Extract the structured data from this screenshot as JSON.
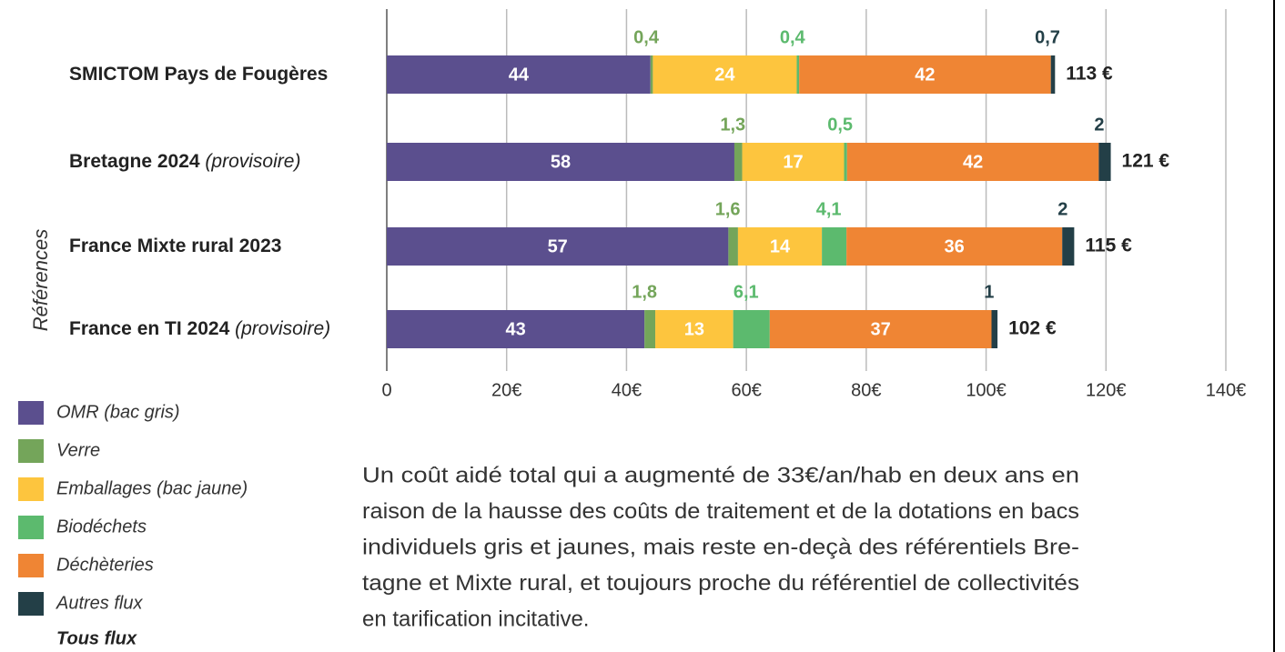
{
  "chart_data": {
    "type": "stacked_barh",
    "categories": [
      "SMICTOM Pays de Fougères",
      "Bretagne 2024",
      "France Mixte rural 2023",
      "France en TI 2024"
    ],
    "category_notes": [
      null,
      "(provisoire)",
      null,
      "(provisoire)"
    ],
    "y_label": "Références",
    "series": [
      {
        "name": "OMR (bac gris)",
        "color": "#5b4f8e",
        "values": [
          44,
          58,
          57,
          43
        ],
        "label_position": "inside"
      },
      {
        "name": "Verre",
        "color": "#74a55a",
        "values": [
          0.4,
          1.3,
          1.6,
          1.8
        ],
        "value_labels": [
          "0,4",
          "1,3",
          "1,6",
          "1,8"
        ],
        "label_position": "above"
      },
      {
        "name": "Emballages (bac jaune)",
        "color": "#fdc53e",
        "values": [
          24,
          17,
          14,
          13
        ],
        "label_position": "inside"
      },
      {
        "name": "Biodéchets",
        "color": "#5cba6e",
        "values": [
          0.4,
          0.5,
          4.1,
          6.1
        ],
        "value_labels": [
          "0,4",
          "0,5",
          "4,1",
          "6,1"
        ],
        "label_position": "above"
      },
      {
        "name": "Déchèteries",
        "color": "#ef8534",
        "values": [
          42,
          42,
          36,
          37
        ],
        "label_position": "inside"
      },
      {
        "name": "Autres flux",
        "color": "#233f47",
        "values": [
          0.7,
          2,
          2,
          1
        ],
        "value_labels": [
          "0,7",
          "2",
          "2",
          "1"
        ],
        "label_position": "above"
      }
    ],
    "totals_name": "Tous flux",
    "totals": [
      113,
      121,
      115,
      102
    ],
    "totals_labels": [
      "113 €",
      "121 €",
      "115 €",
      "102 €"
    ],
    "xlim": [
      0,
      140
    ],
    "xticks": [
      0,
      {
        "value": 20,
        "label": "20€"
      },
      {
        "value": 40,
        "label": "40€"
      },
      {
        "value": 60,
        "label": "60€"
      },
      {
        "value": 80,
        "label": "80€"
      },
      {
        "value": 100,
        "label": "100€"
      },
      {
        "value": 120,
        "label": "120€"
      },
      {
        "value": 140,
        "label": "140€"
      }
    ],
    "grid": true,
    "note_lines": [
      "Un coût aidé total qui a augmenté de 33€/an/hab en deux ans en",
      "raison de la hausse des coûts de traitement et de la dotations en bacs",
      "individuels gris et jaunes, mais reste en-deçà des référentiels Bre-",
      "tagne et Mixte rural, et toujours proche du référentiel de collectivités",
      "en tarification incitative."
    ]
  }
}
